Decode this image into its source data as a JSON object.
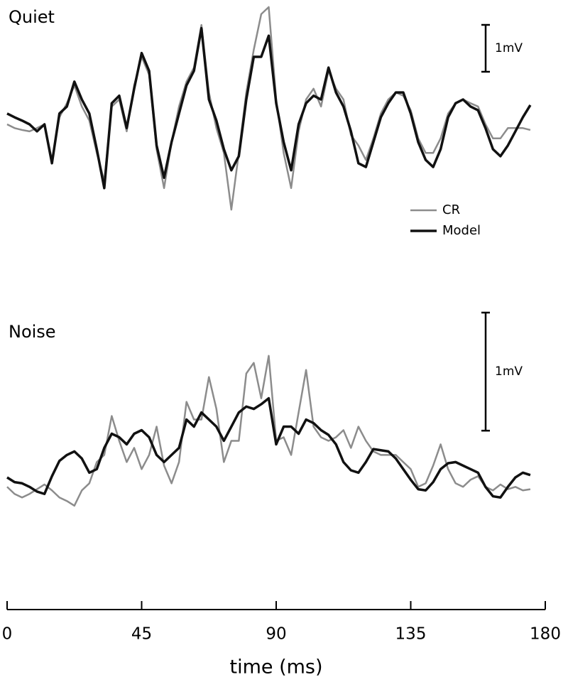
{
  "chart_data": [
    {
      "type": "line",
      "title": "Quiet",
      "xlim": [
        0,
        180
      ],
      "ylim": [
        -2.5,
        2.5
      ],
      "legend": "right",
      "scale_bar": {
        "value": 1,
        "label": "1mV"
      },
      "x": [
        0,
        2.5,
        5,
        7.5,
        10,
        12.5,
        15,
        17.5,
        20,
        22.5,
        25,
        27.5,
        30,
        32.5,
        35,
        37.5,
        40,
        42.5,
        45,
        47.5,
        50,
        52.5,
        55,
        57.5,
        60,
        62.5,
        65,
        67.5,
        70,
        72.5,
        75,
        77.5,
        80,
        82.5,
        85,
        87.5,
        90,
        92.5,
        95,
        97.5,
        100,
        102.5,
        105,
        107.5,
        110,
        112.5,
        115,
        117.5,
        120,
        122.5,
        125,
        127.5,
        130,
        132.5,
        135,
        137.5,
        140,
        142.5,
        145,
        147.5,
        150,
        152.5,
        155,
        157.5,
        160,
        162.5,
        165,
        167.5,
        170,
        172.5,
        175
      ],
      "series": [
        {
          "name": "CR",
          "color": "#8c8c8c",
          "values": [
            0,
            -0.08,
            -0.12,
            -0.15,
            -0.08,
            0,
            -0.76,
            0.15,
            0.45,
            0.83,
            0.38,
            0.08,
            -0.61,
            -1.21,
            0.38,
            0.53,
            -0.15,
            0.83,
            1.44,
            1.06,
            -0.53,
            -1.36,
            -0.38,
            0.38,
            0.91,
            1.21,
            2.12,
            0.68,
            -0.08,
            -0.61,
            -1.82,
            -0.61,
            0.68,
            1.59,
            2.35,
            2.5,
            0.53,
            -0.61,
            -1.36,
            -0.15,
            0.53,
            0.76,
            0.38,
            1.14,
            0.76,
            0.53,
            -0.23,
            -0.45,
            -0.76,
            -0.3,
            0.23,
            0.53,
            0.68,
            0.61,
            0.3,
            -0.3,
            -0.61,
            -0.61,
            -0.3,
            0.23,
            0.45,
            0.53,
            0.45,
            0.38,
            0,
            -0.3,
            -0.3,
            -0.08,
            -0.08,
            -0.08,
            -0.12
          ]
        },
        {
          "name": "Model",
          "color": "#111111",
          "values": [
            0.23,
            0.15,
            0.08,
            0,
            -0.15,
            0,
            -0.83,
            0.23,
            0.38,
            0.91,
            0.53,
            0.23,
            -0.53,
            -1.36,
            0.45,
            0.61,
            -0.08,
            0.76,
            1.52,
            1.14,
            -0.45,
            -1.14,
            -0.38,
            0.23,
            0.83,
            1.14,
            2.05,
            0.53,
            0.08,
            -0.53,
            -0.98,
            -0.68,
            0.53,
            1.44,
            1.44,
            1.89,
            0.45,
            -0.38,
            -0.98,
            0,
            0.45,
            0.61,
            0.53,
            1.21,
            0.68,
            0.38,
            -0.15,
            -0.83,
            -0.91,
            -0.38,
            0.15,
            0.45,
            0.68,
            0.68,
            0.23,
            -0.38,
            -0.76,
            -0.91,
            -0.53,
            0.15,
            0.45,
            0.53,
            0.38,
            0.3,
            -0.08,
            -0.53,
            -0.68,
            -0.45,
            -0.15,
            0.15,
            0.41
          ]
        }
      ]
    },
    {
      "type": "line",
      "title": "Noise",
      "xlim": [
        0,
        180
      ],
      "ylim": [
        -0.6,
        1.5
      ],
      "scale_bar": {
        "value": 1,
        "label": "1mV"
      },
      "xticks": [
        0,
        45,
        90,
        135,
        180
      ],
      "xlabel": "time (ms)",
      "x": [
        0,
        2.5,
        5,
        7.5,
        10,
        12.5,
        15,
        17.5,
        20,
        22.5,
        25,
        27.5,
        30,
        32.5,
        35,
        37.5,
        40,
        42.5,
        45,
        47.5,
        50,
        52.5,
        55,
        57.5,
        60,
        62.5,
        65,
        67.5,
        70,
        72.5,
        75,
        77.5,
        80,
        82.5,
        85,
        87.5,
        90,
        92.5,
        95,
        97.5,
        100,
        102.5,
        105,
        107.5,
        110,
        112.5,
        115,
        117.5,
        120,
        122.5,
        125,
        127.5,
        130,
        132.5,
        135,
        137.5,
        140,
        142.5,
        145,
        147.5,
        150,
        152.5,
        155,
        157.5,
        160,
        162.5,
        165,
        167.5,
        170,
        172.5,
        175
      ],
      "series": [
        {
          "name": "CR",
          "color": "#8c8c8c",
          "values": [
            -0.03,
            -0.09,
            -0.12,
            -0.09,
            -0.05,
            -0.01,
            -0.06,
            -0.12,
            -0.15,
            -0.19,
            -0.06,
            0,
            0.18,
            0.24,
            0.57,
            0.36,
            0.18,
            0.3,
            0.12,
            0.24,
            0.48,
            0.15,
            0,
            0.18,
            0.69,
            0.54,
            0.54,
            0.9,
            0.63,
            0.18,
            0.36,
            0.36,
            0.93,
            1.02,
            0.72,
            1.08,
            0.36,
            0.39,
            0.24,
            0.6,
            0.96,
            0.48,
            0.39,
            0.36,
            0.39,
            0.45,
            0.3,
            0.48,
            0.36,
            0.27,
            0.24,
            0.24,
            0.24,
            0.18,
            0.12,
            -0.03,
            0,
            0.15,
            0.33,
            0.12,
            0,
            -0.03,
            0.03,
            0.06,
            -0.03,
            -0.06,
            -0.01,
            -0.05,
            -0.03,
            -0.06,
            -0.05
          ]
        },
        {
          "name": "Model",
          "color": "#111111",
          "values": [
            0.05,
            0.01,
            0,
            -0.03,
            -0.07,
            -0.09,
            0.06,
            0.19,
            0.24,
            0.27,
            0.21,
            0.09,
            0.12,
            0.3,
            0.42,
            0.39,
            0.33,
            0.42,
            0.45,
            0.39,
            0.24,
            0.18,
            0.24,
            0.3,
            0.54,
            0.48,
            0.6,
            0.54,
            0.48,
            0.36,
            0.48,
            0.6,
            0.65,
            0.63,
            0.67,
            0.72,
            0.33,
            0.48,
            0.48,
            0.42,
            0.54,
            0.51,
            0.45,
            0.41,
            0.33,
            0.18,
            0.11,
            0.09,
            0.18,
            0.29,
            0.28,
            0.27,
            0.21,
            0.12,
            0.03,
            -0.05,
            -0.06,
            0.01,
            0.12,
            0.17,
            0.18,
            0.15,
            0.12,
            0.09,
            -0.03,
            -0.11,
            -0.12,
            -0.03,
            0.05,
            0.09,
            0.07
          ]
        }
      ]
    }
  ]
}
